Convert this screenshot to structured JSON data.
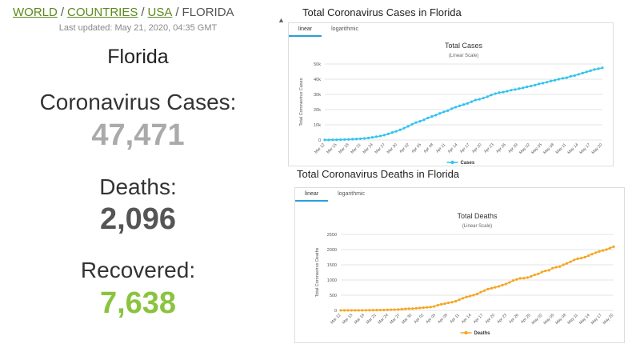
{
  "breadcrumb": {
    "world": "WORLD",
    "countries": "COUNTRIES",
    "usa": "USA",
    "current": "FLORIDA",
    "separator": "/"
  },
  "last_updated": "Last updated: May 21, 2020, 04:35 GMT",
  "country": "Florida",
  "stats": {
    "cases_label": "Coronavirus Cases:",
    "cases_value": "47,471",
    "deaths_label": "Deaths:",
    "deaths_value": "2,096",
    "recovered_label": "Recovered:",
    "recovered_value": "7,638"
  },
  "colors": {
    "cases_line": "#33c3f0",
    "deaths_line": "#f5a623",
    "link": "#5b8a1e",
    "recovered": "#8ac43f",
    "cases_value": "#aaaaaa",
    "tab_accent": "#2a9fd6"
  },
  "chart_data": [
    {
      "type": "line",
      "heading": "Total Coronavirus Cases in Florida",
      "tabs": [
        "linear",
        "logarithmic"
      ],
      "active_tab": 0,
      "title": "Total Cases",
      "subtitle": "(Linear Scale)",
      "ylabel": "Total Coronavirus Cases",
      "xlabel": "",
      "ylim": [
        0,
        50000
      ],
      "yticks": [
        0,
        10000,
        20000,
        30000,
        40000,
        50000
      ],
      "ytick_labels": [
        "0",
        "10k",
        "20k",
        "30k",
        "40k",
        "50k"
      ],
      "xtick_labels": [
        "Mar 12",
        "Mar 15",
        "Mar 18",
        "Mar 21",
        "Mar 24",
        "Mar 27",
        "Mar 30",
        "Apr 02",
        "Apr 05",
        "Apr 08",
        "Apr 11",
        "Apr 14",
        "Apr 17",
        "Apr 20",
        "Apr 23",
        "Apr 26",
        "Apr 29",
        "May 02",
        "May 05",
        "May 08",
        "May 11",
        "May 14",
        "May 17",
        "May 20"
      ],
      "legend": [
        "Cases"
      ],
      "legend_position": "bottom-center",
      "grid": true,
      "series": [
        {
          "name": "Cases",
          "values": [
            50,
            70,
            100,
            150,
            200,
            300,
            400,
            520,
            650,
            830,
            1050,
            1300,
            1700,
            2200,
            2600,
            3200,
            4000,
            4950,
            5700,
            6700,
            7800,
            9000,
            10300,
            11500,
            12300,
            13300,
            14500,
            15450,
            16400,
            17500,
            18500,
            19300,
            20600,
            21600,
            22500,
            23300,
            24100,
            25200,
            26300,
            26800,
            27600,
            28500,
            29600,
            30500,
            31200,
            31500,
            32100,
            32800,
            33200,
            33800,
            34300,
            35000,
            35500,
            36100,
            36900,
            37400,
            38000,
            38800,
            39300,
            40000,
            40600,
            41000,
            41900,
            42400,
            43200,
            44000,
            44800,
            45600,
            46400,
            46900,
            47471
          ]
        }
      ]
    },
    {
      "type": "line",
      "heading": "Total Coronavirus Deaths in Florida",
      "tabs": [
        "linear",
        "logarithmic"
      ],
      "active_tab": 0,
      "title": "Total Deaths",
      "subtitle": "(Linear Scale)",
      "ylabel": "Total Coronavirus Deaths",
      "xlabel": "",
      "ylim": [
        0,
        2500
      ],
      "yticks": [
        0,
        500,
        1000,
        1500,
        2000,
        2500
      ],
      "ytick_labels": [
        "0",
        "500",
        "1000",
        "1500",
        "2000",
        "2500"
      ],
      "xtick_labels": [
        "Mar 12",
        "Mar 15",
        "Mar 18",
        "Mar 21",
        "Mar 24",
        "Mar 27",
        "Mar 30",
        "Apr 02",
        "Apr 05",
        "Apr 08",
        "Apr 11",
        "Apr 14",
        "Apr 17",
        "Apr 20",
        "Apr 23",
        "Apr 26",
        "Apr 29",
        "May 02",
        "May 05",
        "May 08",
        "May 11",
        "May 14",
        "May 17",
        "May 20"
      ],
      "legend": [
        "Deaths"
      ],
      "legend_position": "bottom-center",
      "grid": true,
      "series": [
        {
          "name": "Deaths",
          "values": [
            2,
            2,
            2,
            2,
            2,
            2,
            3,
            5,
            7,
            8,
            10,
            12,
            14,
            18,
            22,
            25,
            30,
            40,
            50,
            56,
            60,
            70,
            80,
            90,
            100,
            110,
            130,
            170,
            200,
            220,
            250,
            270,
            300,
            350,
            400,
            440,
            470,
            500,
            540,
            600,
            650,
            700,
            730,
            760,
            790,
            830,
            870,
            920,
            980,
            1020,
            1055,
            1060,
            1080,
            1120,
            1170,
            1200,
            1260,
            1300,
            1320,
            1390,
            1420,
            1440,
            1500,
            1550,
            1600,
            1660,
            1700,
            1720,
            1750,
            1800,
            1850,
            1900,
            1940,
            1970,
            2000,
            2050,
            2096
          ]
        }
      ]
    }
  ]
}
